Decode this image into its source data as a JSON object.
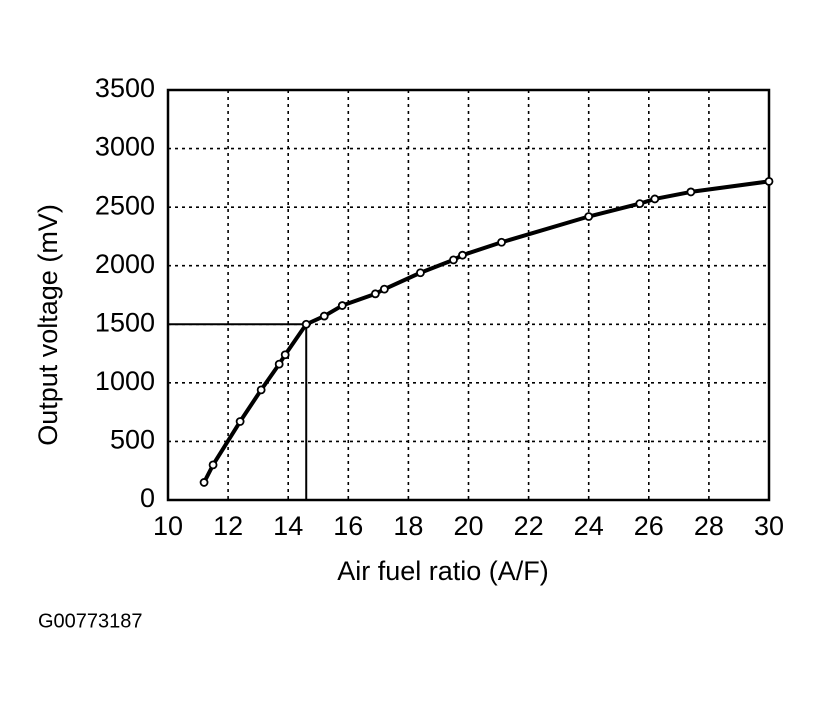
{
  "chart_data": {
    "type": "line",
    "x_label": "Air fuel ratio (A/F)",
    "y_label": "Output voltage (mV)",
    "x": [
      11.2,
      11.5,
      12.4,
      13.1,
      13.7,
      13.9,
      14.6,
      15.2,
      15.8,
      16.9,
      17.2,
      18.4,
      19.5,
      19.8,
      21.1,
      24.0,
      25.7,
      26.2,
      27.4,
      30
    ],
    "series": [
      {
        "color": "#000000",
        "values": [
          150,
          300,
          670,
          940,
          1160,
          1240,
          1500,
          1570,
          1660,
          1760,
          1800,
          1940,
          2050,
          2090,
          2200,
          2420,
          2530,
          2570,
          2630,
          2720
        ]
      }
    ],
    "reference_x": 14.6,
    "reference_y": 1500,
    "xlim": [
      10,
      30
    ],
    "xticks": [
      10,
      12,
      14,
      16,
      18,
      20,
      22,
      24,
      26,
      28,
      30
    ],
    "ylim": [
      0,
      3500
    ],
    "yticks": [
      0,
      500,
      1000,
      1500,
      2000,
      2500,
      3000,
      3500
    ],
    "grid": true
  },
  "figure_id": "G00773187"
}
